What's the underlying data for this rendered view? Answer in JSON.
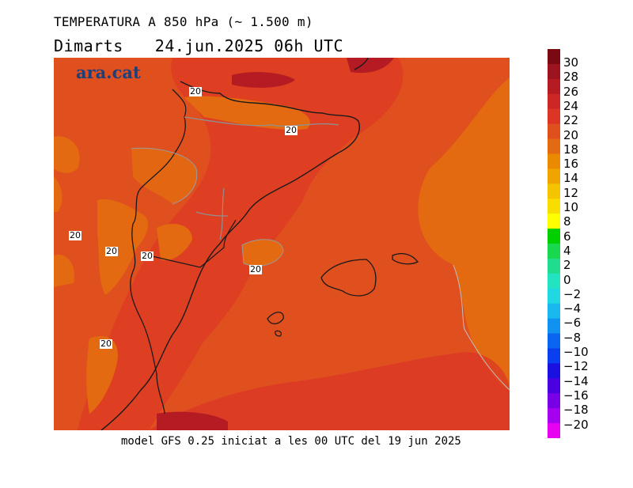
{
  "header": {
    "title": "TEMPERATURA A 850 hPa (~ 1.500 m)",
    "day": "Dimarts",
    "datetime": "24.jun.2025 06h UTC"
  },
  "logo": "ara.cat",
  "map": {
    "labels": [
      "20",
      "20",
      "20",
      "20",
      "20",
      "20",
      "20"
    ]
  },
  "footer": "model GFS 0.25 iniciat a les 00 UTC del 19 jun 2025",
  "colorbar": {
    "labels": [
      "30",
      "28",
      "26",
      "24",
      "22",
      "20",
      "18",
      "16",
      "14",
      "12",
      "10",
      "8",
      "6",
      "4",
      "2",
      "0",
      "−2",
      "−4",
      "−6",
      "−8",
      "−10",
      "−12",
      "−14",
      "−16",
      "−18",
      "−20"
    ],
    "colors": [
      "#7a0a12",
      "#9b1420",
      "#b51b23",
      "#cd2725",
      "#dc3526",
      "#e04f1e",
      "#e36a10",
      "#ea8a00",
      "#f0a400",
      "#f5c400",
      "#f9dd00",
      "#ffff00",
      "#00d000",
      "#18d84e",
      "#20dd8e",
      "#22e4c0",
      "#20d8e2",
      "#19b9f0",
      "#1191f0",
      "#0a66f0",
      "#0a3ff0",
      "#1a10e0",
      "#4a00e0",
      "#7800e6",
      "#a600f0",
      "#e800f0"
    ]
  }
}
